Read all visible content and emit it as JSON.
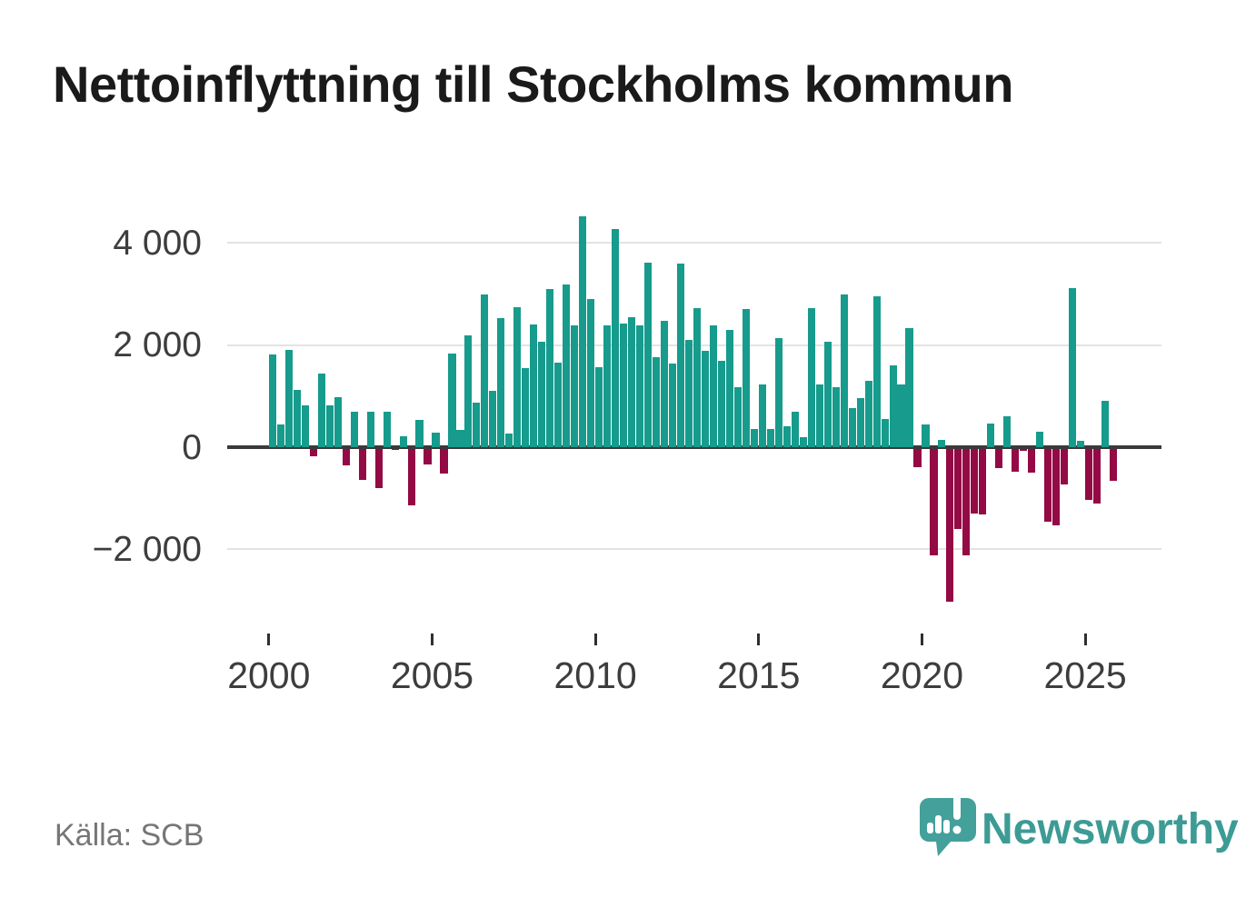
{
  "title": "Nettoinflyttning till Stockholms kommun",
  "source": "Källa: SCB",
  "logo": {
    "text": "Newsworthy"
  },
  "colors": {
    "positive_bar": "#169b8c",
    "negative_bar": "#930a45",
    "grid": "#e3e3e3",
    "zero_line": "#3a3a3a",
    "axis_text": "#3d3d3d",
    "source_text": "#767676",
    "brand_teal": "#3d9b95",
    "logo_bubble": "#44a09a"
  },
  "chart_data": {
    "type": "bar",
    "title": "Nettoinflyttning till Stockholms kommun",
    "periodicity": "quarterly",
    "start": "2000 Q1",
    "end": "2025 Q4",
    "xlabel": "",
    "ylabel": "",
    "grid": true,
    "legend": false,
    "ylim": [
      -3200,
      4700
    ],
    "y_axis": [
      {
        "label": "4 000",
        "value": 4000
      },
      {
        "label": "2 000",
        "value": 2000
      },
      {
        "label": "0",
        "value": 0
      },
      {
        "label": "−2 000",
        "value": -2000
      }
    ],
    "x_axis": [
      {
        "label": "2000",
        "year": 2000
      },
      {
        "label": "2005",
        "year": 2005
      },
      {
        "label": "2010",
        "year": 2010
      },
      {
        "label": "2015",
        "year": 2015
      },
      {
        "label": "2020",
        "year": 2020
      },
      {
        "label": "2025",
        "year": 2025
      }
    ],
    "values": [
      1820,
      440,
      1900,
      1130,
      820,
      -150,
      1450,
      820,
      980,
      -320,
      700,
      -610,
      700,
      -760,
      700,
      -20,
      220,
      -1110,
      540,
      -310,
      290,
      -480,
      1830,
      330,
      2190,
      880,
      3000,
      1100,
      2530,
      260,
      2750,
      1550,
      2410,
      2070,
      3100,
      1650,
      3180,
      2380,
      4520,
      2910,
      1560,
      2390,
      4270,
      2430,
      2540,
      2390,
      3620,
      1770,
      2470,
      1640,
      3590,
      2110,
      2730,
      1880,
      2380,
      1700,
      2290,
      1180,
      2710,
      350,
      1220,
      360,
      2130,
      410,
      690,
      190,
      2730,
      1220,
      2070,
      1180,
      2990,
      770,
      960,
      1300,
      2950,
      550,
      1610,
      1230,
      2340,
      -360,
      450,
      -2080,
      150,
      -3000,
      -1560,
      -2090,
      -1270,
      -1290,
      460,
      -370,
      600,
      -450,
      -30,
      -470,
      310,
      -1420,
      -1490,
      -700,
      3120,
      130,
      -1000,
      -1060,
      900,
      -620
    ]
  }
}
